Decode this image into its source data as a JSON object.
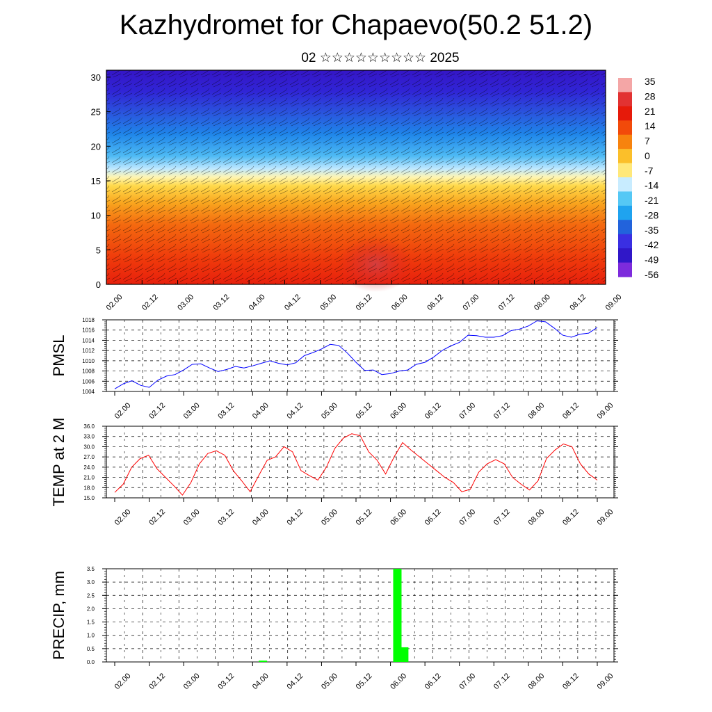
{
  "title": "Kazhydromet for Chapaevo(50.2 51.2)",
  "subtitle": "02 ☆☆☆☆☆☆☆☆☆ 2025",
  "time_labels": [
    "02.00",
    "02.12",
    "03.00",
    "03.12",
    "04.00",
    "04.12",
    "05.00",
    "05.12",
    "06.00",
    "06.12",
    "07.00",
    "07.12",
    "08.00",
    "08.12",
    "09.00"
  ],
  "colors": {
    "pmsl_line": "#0000ff",
    "temp_line": "#ff0000",
    "precip_bar": "#00ff00",
    "grid": "#000000"
  },
  "chart_data": [
    {
      "type": "heatmap",
      "title": "Kazhydromet for Chapaevo(50.2 51.2)",
      "xlabel": "",
      "ylabel": "",
      "y_ticks": [
        0,
        5,
        10,
        15,
        20,
        25,
        30
      ],
      "ylim": [
        0,
        31
      ],
      "colorbar": {
        "labels": [
          "35",
          "28",
          "21",
          "14",
          "7",
          "0",
          "-7",
          "-14",
          "-21",
          "-28",
          "-35",
          "-42",
          "-49",
          "-56"
        ],
        "colors": [
          "#f4a6a6",
          "#e23232",
          "#e61a0a",
          "#f24a0a",
          "#f7830e",
          "#fbbf2a",
          "#ffe87a",
          "#c8ecff",
          "#55c8f5",
          "#1fa3ef",
          "#2263dc",
          "#3a2fe2",
          "#3017c8",
          "#7d2bdc"
        ]
      },
      "grid": false
    },
    {
      "type": "line",
      "ylabel": "PMSL",
      "ylim": [
        1004,
        1018
      ],
      "y_ticks": [
        "1004",
        "1006",
        "1008",
        "1010",
        "1012",
        "1014",
        "1016",
        "1018"
      ],
      "x_ticks": [
        "02.00",
        "02.12",
        "03.00",
        "03.12",
        "04.00",
        "04.12",
        "05.00",
        "05.12",
        "06.00",
        "06.12",
        "07.00",
        "07.12",
        "08.00",
        "08.12",
        "09.00"
      ],
      "series": [
        {
          "values": [
            1004.5,
            1005.5,
            1006.1,
            1005.2,
            1004.8,
            1006.2,
            1007.0,
            1007.3,
            1008.2,
            1009.3,
            1009.4,
            1008.6,
            1007.9,
            1008.3,
            1008.9,
            1008.6,
            1009.0,
            1009.5,
            1010.0,
            1009.5,
            1009.2,
            1009.6,
            1011.0,
            1011.6,
            1012.3,
            1013.2,
            1013.0,
            1011.5,
            1009.7,
            1008.1,
            1008.2,
            1007.3,
            1007.5,
            1008.0,
            1008.2,
            1009.3,
            1009.7,
            1010.7,
            1012.0,
            1012.9,
            1013.6,
            1015.0,
            1014.9,
            1014.6,
            1014.6,
            1014.9,
            1015.9,
            1016.2,
            1016.8,
            1017.8,
            1017.6,
            1016.4,
            1015.0,
            1014.6,
            1015.2,
            1015.4,
            1016.5
          ]
        }
      ],
      "grid": true
    },
    {
      "type": "line",
      "ylabel": "TEMP at 2 M",
      "ylim": [
        15,
        36
      ],
      "y_ticks": [
        "15.0",
        "18.0",
        "21.0",
        "24.0",
        "27.0",
        "30.0",
        "33.0",
        "36.0"
      ],
      "x_ticks": [
        "02.00",
        "02.12",
        "03.00",
        "03.12",
        "04.00",
        "04.12",
        "05.00",
        "05.12",
        "06.00",
        "06.12",
        "07.00",
        "07.12",
        "08.00",
        "08.12",
        "09.00"
      ],
      "series": [
        {
          "values": [
            16.6,
            19.0,
            24.0,
            26.5,
            27.5,
            23.5,
            21.0,
            18.5,
            15.8,
            19.5,
            25.0,
            28.0,
            28.8,
            27.5,
            23.0,
            20.0,
            16.8,
            21.5,
            26.0,
            27.0,
            30.0,
            28.5,
            23.0,
            21.5,
            20.2,
            24.0,
            29.5,
            32.5,
            33.8,
            33.2,
            28.5,
            26.0,
            22.0,
            27.0,
            31.2,
            29.0,
            27.0,
            25.0,
            23.0,
            21.0,
            19.5,
            16.8,
            17.5,
            22.5,
            25.0,
            26.2,
            25.0,
            21.0,
            19.0,
            17.3,
            20.0,
            26.5,
            29.0,
            30.8,
            30.0,
            25.0,
            22.0,
            20.2
          ]
        }
      ],
      "grid": true
    },
    {
      "type": "bar",
      "ylabel": "PRECIP, mm",
      "ylim": [
        0,
        3.5
      ],
      "y_ticks": [
        "0.0",
        "0.5",
        "1.0",
        "1.5",
        "2.0",
        "2.5",
        "3.0",
        "3.5"
      ],
      "x_ticks": [
        "02.00",
        "02.12",
        "03.00",
        "03.12",
        "04.00",
        "04.12",
        "05.00",
        "05.12",
        "06.00",
        "06.12",
        "07.00",
        "07.12",
        "08.00",
        "08.12",
        "09.00"
      ],
      "bars": [
        {
          "t": 4.15,
          "value": 0.05
        },
        {
          "t": 6.1,
          "value": 3.5
        },
        {
          "t": 6.2,
          "value": 0.55
        }
      ],
      "grid": true
    }
  ]
}
